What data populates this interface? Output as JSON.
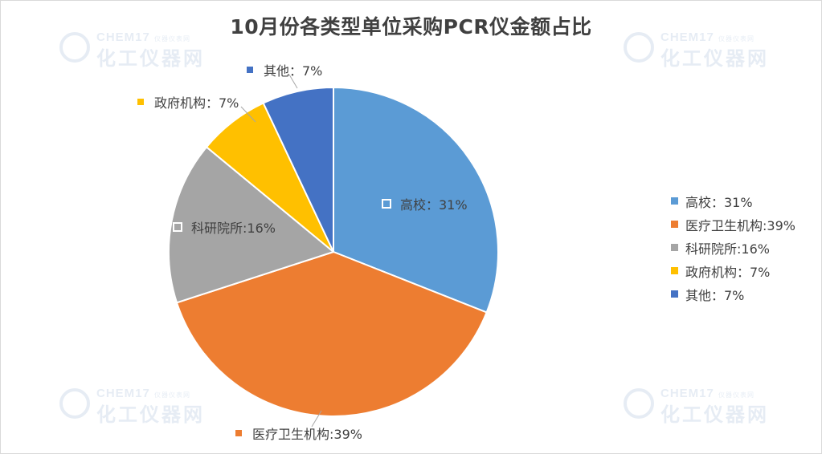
{
  "chart_data": {
    "type": "pie",
    "title": "10月份各类型单位采购PCR仪金额占比",
    "slices": [
      {
        "name": "高校",
        "value": 31,
        "label": "高校：31%",
        "color": "#5B9BD5"
      },
      {
        "name": "医疗卫生机构",
        "value": 39,
        "label": "医疗卫生机构:39%",
        "color": "#ED7D31"
      },
      {
        "name": "科研院所",
        "value": 16,
        "label": "科研院所:16%",
        "color": "#A5A5A5"
      },
      {
        "name": "政府机构",
        "value": 7,
        "label": "政府机构：7%",
        "color": "#FFC000"
      },
      {
        "name": "其他",
        "value": 7,
        "label": "其他：7%",
        "color": "#4472C4"
      }
    ],
    "legend_position": "right"
  },
  "watermark": {
    "brand_en": "CHEM17",
    "tagline": "仪器仪表网",
    "brand_cn": "化工仪器网"
  }
}
